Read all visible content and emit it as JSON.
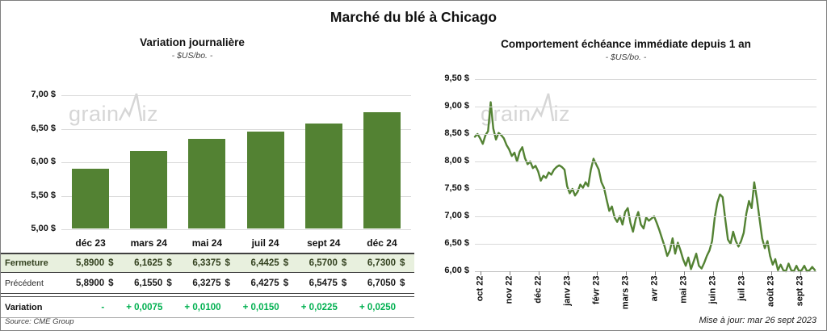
{
  "main_title": "Marché du blé à Chicago",
  "source_note": "Source: CME Group",
  "update_note": "Mise à jour: mar 26 sept 2023",
  "watermark": {
    "text_before": "grain",
    "text_after": "iz"
  },
  "colors": {
    "series_green": "#538233",
    "fermeture_row_bg": "#e8f0de",
    "fermeture_text": "#33411f",
    "variation_text": "#00B050",
    "gridline_gray": "#d9d9d9",
    "watermark_gray": "#d6d6d6"
  },
  "chart_data": [
    {
      "type": "bar",
      "title": "Variation journalière",
      "subtitle": "- $US/bo. -",
      "categories": [
        "déc 23",
        "mars 24",
        "mai 24",
        "juil 24",
        "sept 24",
        "déc 24"
      ],
      "values": [
        5.89,
        6.1625,
        6.3375,
        6.4425,
        6.57,
        6.73
      ],
      "ylim": [
        5.0,
        7.0
      ],
      "y_tick_labels": [
        "7,00 $",
        "6,50 $",
        "6,00 $",
        "5,50 $",
        "5,00 $"
      ],
      "grid": true,
      "legend": "none"
    },
    {
      "type": "line",
      "title": "Comportement échéance immédiate depuis 1 an",
      "subtitle": "- $US/bo. -",
      "ylim": [
        6.0,
        9.5
      ],
      "y_tick_labels": [
        "9,50 $",
        "9,00 $",
        "8,50 $",
        "8,00 $",
        "7,50 $",
        "7,00 $",
        "6,50 $",
        "6,00 $"
      ],
      "x_tick_labels": [
        "oct 22",
        "nov 22",
        "déc 22",
        "janv 23",
        "févr 23",
        "mars 23",
        "avr 23",
        "mai 23",
        "juin 23",
        "juil 23",
        "août 23",
        "sept 23"
      ],
      "grid": true,
      "legend": "none",
      "values": [
        8.45,
        8.5,
        8.42,
        8.32,
        8.48,
        8.55,
        9.08,
        8.6,
        8.4,
        8.52,
        8.48,
        8.42,
        8.3,
        8.22,
        8.1,
        8.16,
        8.0,
        8.18,
        8.26,
        8.06,
        7.95,
        8.0,
        7.88,
        7.92,
        7.82,
        7.65,
        7.74,
        7.7,
        7.8,
        7.76,
        7.85,
        7.9,
        7.93,
        7.9,
        7.85,
        7.55,
        7.42,
        7.5,
        7.38,
        7.45,
        7.58,
        7.52,
        7.62,
        7.55,
        7.85,
        8.05,
        7.95,
        7.85,
        7.62,
        7.52,
        7.3,
        7.1,
        7.18,
        6.98,
        6.9,
        7.0,
        6.85,
        7.08,
        7.15,
        6.88,
        6.72,
        6.95,
        7.08,
        6.85,
        6.78,
        6.98,
        6.92,
        6.96,
        7.0,
        6.88,
        6.75,
        6.6,
        6.45,
        6.28,
        6.38,
        6.6,
        6.32,
        6.52,
        6.38,
        6.22,
        6.1,
        6.25,
        6.04,
        6.18,
        6.32,
        6.1,
        6.05,
        6.15,
        6.28,
        6.38,
        6.55,
        6.98,
        7.25,
        7.4,
        7.35,
        6.95,
        6.58,
        6.5,
        6.72,
        6.55,
        6.45,
        6.55,
        6.7,
        7.05,
        7.28,
        7.15,
        7.62,
        7.32,
        6.95,
        6.6,
        6.42,
        6.55,
        6.28,
        6.12,
        6.22,
        6.02,
        6.12,
        6.02,
        6.0,
        6.14,
        6.02,
        6.0,
        6.1,
        6.0,
        6.02,
        6.1,
        6.0,
        6.02,
        6.08,
        6.02
      ]
    }
  ],
  "table": {
    "rows": [
      {
        "label": "Fermeture",
        "currency": "$",
        "values": [
          "5,8900",
          "6,1625",
          "6,3375",
          "6,4425",
          "6,5700",
          "6,7300"
        ]
      },
      {
        "label": "Précédent",
        "currency": "$",
        "values": [
          "5,8900",
          "6,1550",
          "6,3275",
          "6,4275",
          "6,5475",
          "6,7050"
        ]
      },
      {
        "label": "Variation",
        "currency": "",
        "values": [
          "-",
          "+ 0,0075",
          "+ 0,0100",
          "+ 0,0150",
          "+ 0,0225",
          "+ 0,0250"
        ]
      }
    ]
  }
}
